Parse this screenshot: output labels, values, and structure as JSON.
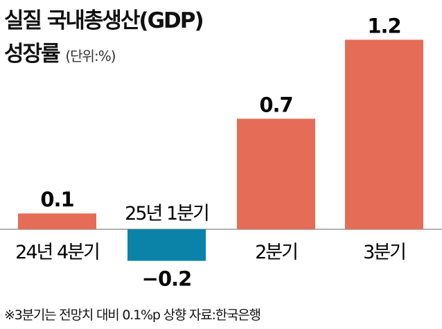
{
  "chart_data": {
    "type": "bar",
    "title": "실질 국내총생산(GDP) 성장률",
    "unit": "(단위:%)",
    "categories": [
      "24년 4분기",
      "25년 1분기",
      "2분기",
      "3분기"
    ],
    "values": [
      0.1,
      -0.2,
      0.7,
      1.2
    ],
    "value_labels": [
      "0.1",
      "−0.2",
      "0.7",
      "1.2"
    ],
    "colors": {
      "positive": "#e56c57",
      "negative": "#0b83a8",
      "baseline": "#999999"
    },
    "grid": false
  },
  "footnote": "※3분기는 전망치 대비 0.1%p 상향 자료:한국은행"
}
